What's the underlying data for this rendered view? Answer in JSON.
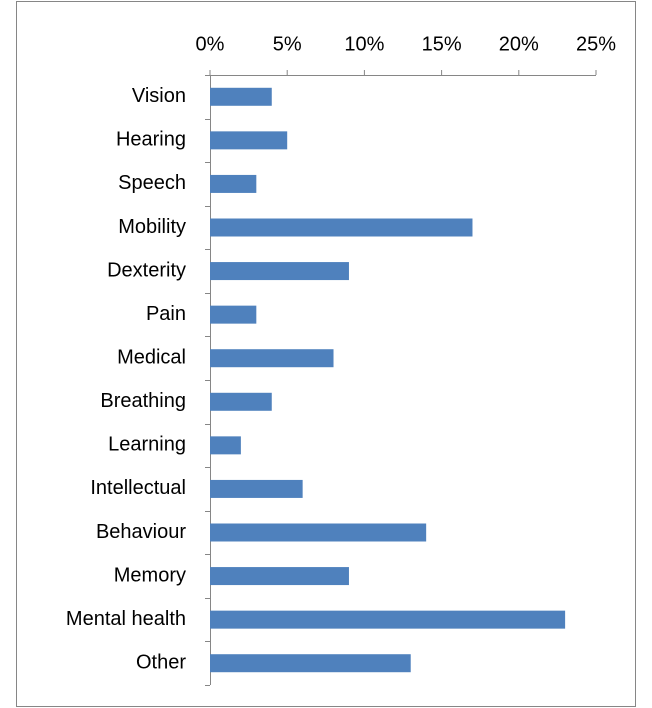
{
  "chart_data": {
    "type": "bar",
    "orientation": "horizontal",
    "categories": [
      "Vision",
      "Hearing",
      "Speech",
      "Mobility",
      "Dexterity",
      "Pain",
      "Medical",
      "Breathing",
      "Learning",
      "Intellectual",
      "Behaviour",
      "Memory",
      "Mental health",
      "Other"
    ],
    "values": [
      4,
      5,
      3,
      17,
      9,
      3,
      8,
      4,
      2,
      6,
      14,
      9,
      23,
      13
    ],
    "color": "#4f81bd",
    "xlim": [
      0,
      25
    ],
    "xticks": [
      {
        "value": 0,
        "label": "0%"
      },
      {
        "value": 5,
        "label": "5%"
      },
      {
        "value": 10,
        "label": "10%"
      },
      {
        "value": 15,
        "label": "15%"
      },
      {
        "value": 20,
        "label": "20%"
      },
      {
        "value": 25,
        "label": "25%"
      }
    ],
    "grid": false
  }
}
